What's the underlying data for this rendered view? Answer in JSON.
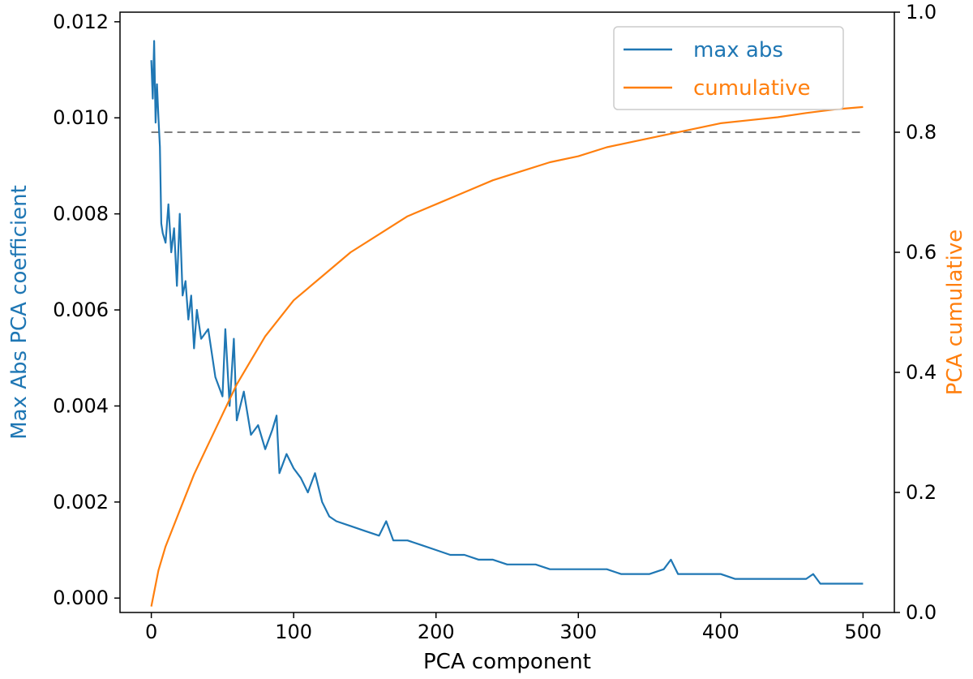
{
  "chart_data": {
    "type": "line",
    "title": "",
    "xlabel": "PCA component",
    "ylabel_left": "Max Abs PCA coefficient",
    "ylabel_right": "PCA cumulative",
    "xlim": [
      -22,
      522
    ],
    "ylim_left": [
      -0.0003,
      0.0122
    ],
    "ylim_right": [
      0,
      1
    ],
    "xticks": [
      0,
      100,
      200,
      300,
      400,
      500
    ],
    "yticks_left": [
      0.0,
      0.002,
      0.004,
      0.006,
      0.008,
      0.01,
      0.012
    ],
    "yticks_right": [
      0.0,
      0.2,
      0.4,
      0.6,
      0.8,
      1.0
    ],
    "xtick_labels": [
      "0",
      "100",
      "200",
      "300",
      "400",
      "500"
    ],
    "ytick_labels_left": [
      "0.000",
      "0.002",
      "0.004",
      "0.006",
      "0.008",
      "0.010",
      "0.012"
    ],
    "ytick_labels_right": [
      "0.0",
      "0.2",
      "0.4",
      "0.6",
      "0.8",
      "1.0"
    ],
    "grid": false,
    "legend_position": "top-right",
    "threshold": {
      "y_right": 0.8,
      "x_range": [
        0,
        500
      ],
      "style": "dashed",
      "color": "#7f7f7f"
    },
    "series": [
      {
        "name": "max abs",
        "axis": "left",
        "color": "#1f77b4",
        "x": [
          0,
          1,
          2,
          3,
          4,
          5,
          6,
          7,
          8,
          10,
          12,
          14,
          16,
          18,
          20,
          22,
          24,
          26,
          28,
          30,
          32,
          35,
          40,
          45,
          50,
          52,
          55,
          58,
          60,
          65,
          70,
          75,
          80,
          85,
          88,
          90,
          95,
          100,
          105,
          110,
          115,
          120,
          125,
          130,
          140,
          150,
          160,
          165,
          170,
          180,
          190,
          200,
          210,
          220,
          230,
          240,
          250,
          260,
          270,
          280,
          290,
          300,
          310,
          320,
          330,
          340,
          350,
          360,
          365,
          370,
          380,
          390,
          400,
          410,
          420,
          430,
          440,
          450,
          460,
          465,
          470,
          480,
          490,
          500
        ],
        "y": [
          0.0112,
          0.0104,
          0.0116,
          0.0099,
          0.0107,
          0.01,
          0.0094,
          0.0078,
          0.0076,
          0.0074,
          0.0082,
          0.0072,
          0.0077,
          0.0065,
          0.008,
          0.0063,
          0.0066,
          0.0058,
          0.0063,
          0.0052,
          0.006,
          0.0054,
          0.0056,
          0.0046,
          0.0042,
          0.0056,
          0.004,
          0.0054,
          0.0037,
          0.0043,
          0.0034,
          0.0036,
          0.0031,
          0.0035,
          0.0038,
          0.0026,
          0.003,
          0.0027,
          0.0025,
          0.0022,
          0.0026,
          0.002,
          0.0017,
          0.0016,
          0.0015,
          0.0014,
          0.0013,
          0.0016,
          0.0012,
          0.0012,
          0.0011,
          0.001,
          0.0009,
          0.0009,
          0.0008,
          0.0008,
          0.0007,
          0.0007,
          0.0007,
          0.0006,
          0.0006,
          0.0006,
          0.0006,
          0.0006,
          0.0005,
          0.0005,
          0.0005,
          0.0006,
          0.0008,
          0.0005,
          0.0005,
          0.0005,
          0.0005,
          0.0004,
          0.0004,
          0.0004,
          0.0004,
          0.0004,
          0.0004,
          0.0005,
          0.0003,
          0.0003,
          0.0003,
          0.0003
        ]
      },
      {
        "name": "cumulative",
        "axis": "right",
        "color": "#ff7f0e",
        "x": [
          0,
          5,
          10,
          20,
          30,
          40,
          50,
          60,
          70,
          80,
          90,
          100,
          120,
          140,
          160,
          180,
          200,
          220,
          240,
          260,
          280,
          300,
          320,
          340,
          360,
          380,
          400,
          420,
          440,
          460,
          480,
          500
        ],
        "y": [
          0.01,
          0.07,
          0.11,
          0.17,
          0.23,
          0.28,
          0.33,
          0.38,
          0.42,
          0.46,
          0.49,
          0.52,
          0.56,
          0.6,
          0.63,
          0.66,
          0.68,
          0.7,
          0.72,
          0.735,
          0.75,
          0.76,
          0.775,
          0.785,
          0.795,
          0.805,
          0.815,
          0.82,
          0.825,
          0.832,
          0.838,
          0.842
        ]
      }
    ]
  }
}
